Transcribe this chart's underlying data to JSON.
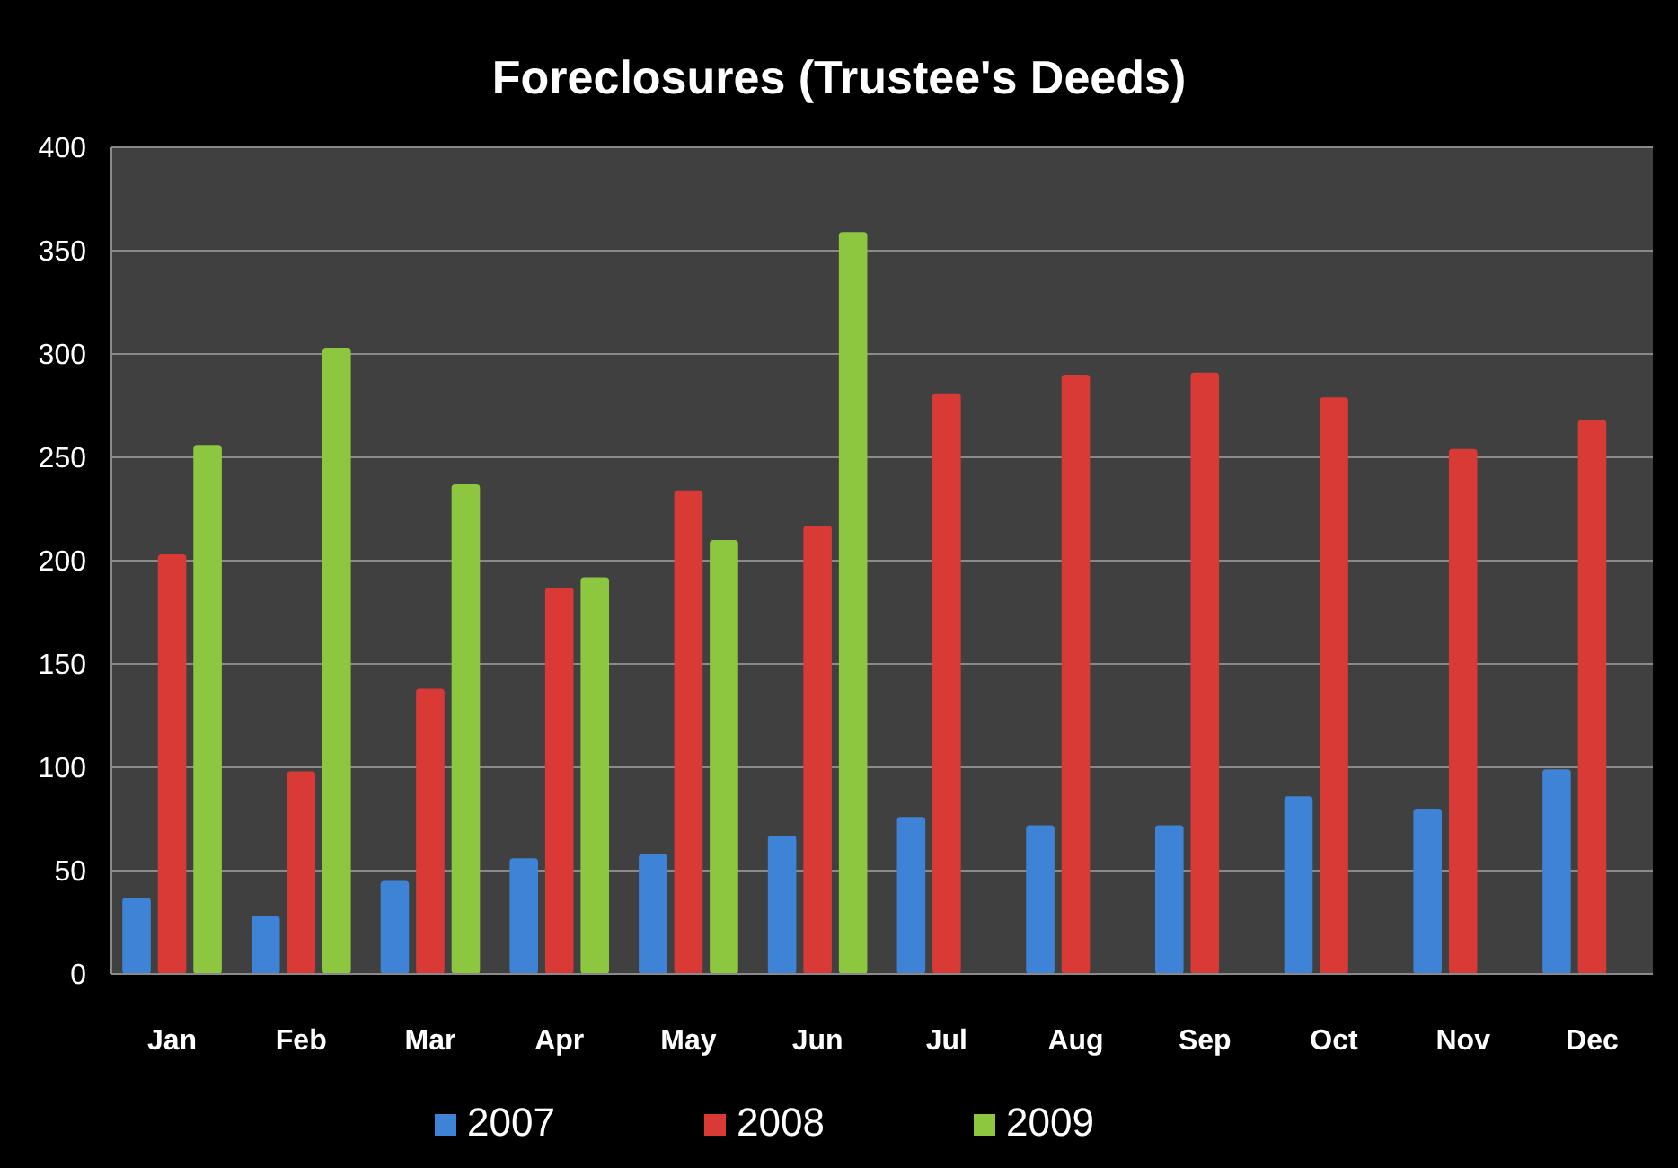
{
  "chart_data": {
    "type": "bar",
    "title": "Foreclosures (Trustee's Deeds)",
    "categories": [
      "Jan",
      "Feb",
      "Mar",
      "Apr",
      "May",
      "Jun",
      "Jul",
      "Aug",
      "Sep",
      "Oct",
      "Nov",
      "Dec"
    ],
    "series": [
      {
        "name": "2007",
        "color": "#3f83d6",
        "values": [
          37,
          28,
          45,
          56,
          58,
          67,
          76,
          72,
          72,
          86,
          80,
          99
        ]
      },
      {
        "name": "2008",
        "color": "#d93a36",
        "values": [
          203,
          98,
          138,
          187,
          234,
          217,
          281,
          290,
          291,
          279,
          254,
          268
        ]
      },
      {
        "name": "2009",
        "color": "#8dc63f",
        "values": [
          256,
          303,
          237,
          192,
          210,
          359,
          null,
          null,
          null,
          null,
          null,
          null
        ]
      }
    ],
    "ylim": [
      0,
      400
    ],
    "yticks": [
      0,
      50,
      100,
      150,
      200,
      250,
      300,
      350,
      400
    ],
    "grid": "y",
    "legend": "bottom"
  }
}
